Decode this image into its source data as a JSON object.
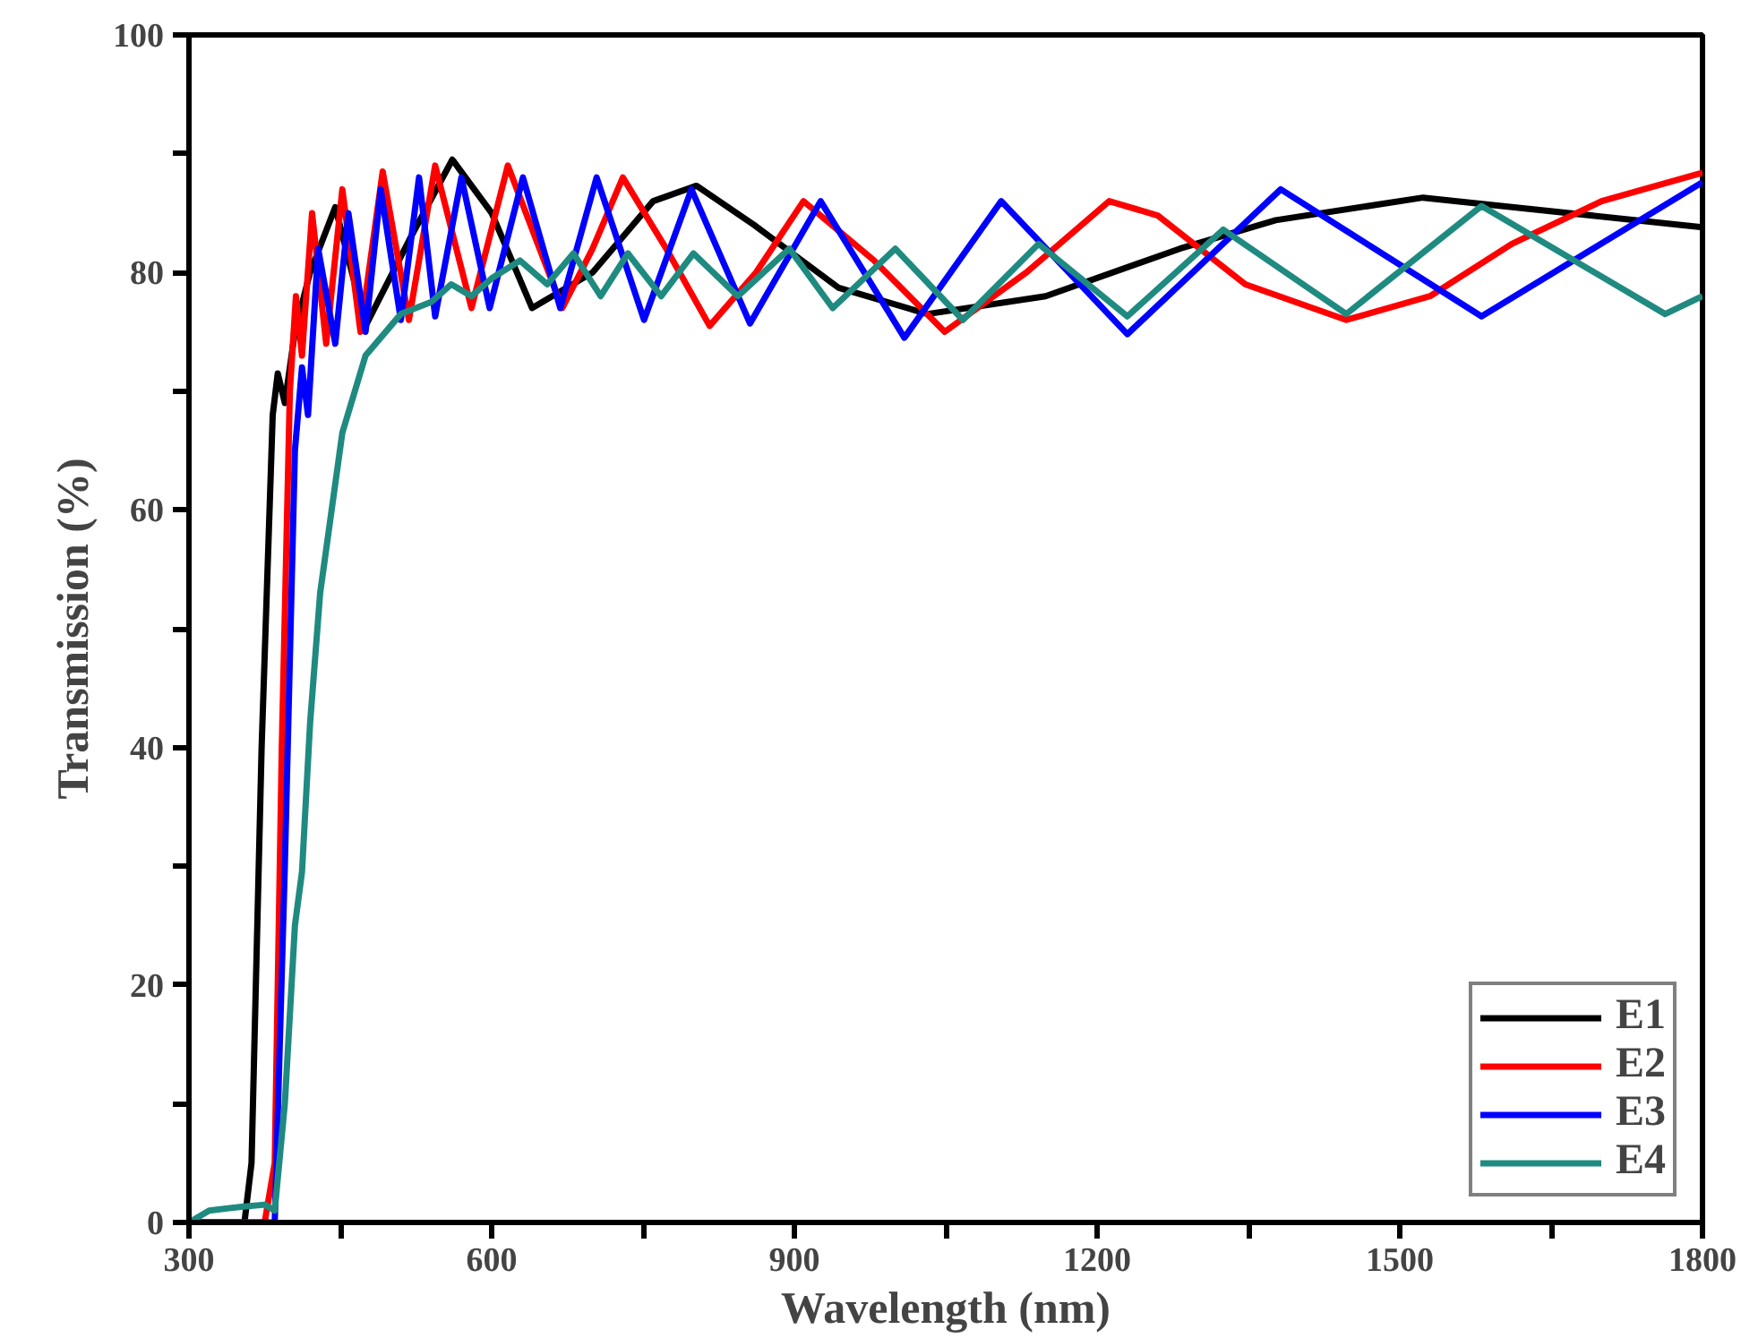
{
  "chart_data": {
    "type": "line",
    "xlabel": "Wavelength (nm)",
    "ylabel": "Transmission (%)",
    "xlim": [
      300,
      1800
    ],
    "ylim": [
      0,
      100
    ],
    "xticks": [
      300,
      {
        "value": 450,
        "label": null
      },
      600,
      {
        "value": 750,
        "label": null
      },
      900,
      {
        "value": 1050,
        "label": null
      },
      1200,
      {
        "value": 1350,
        "label": null
      },
      1500,
      {
        "value": 1650,
        "label": null
      },
      1800
    ],
    "yticks": [
      0,
      {
        "value": 10,
        "label": null
      },
      20,
      {
        "value": 30,
        "label": null
      },
      40,
      {
        "value": 50,
        "label": null
      },
      60,
      {
        "value": 70,
        "label": null
      },
      80,
      {
        "value": 90,
        "label": null
      },
      100
    ],
    "grid": false,
    "legend": "bottom right",
    "marker": "none",
    "line_style": "solid",
    "series": [
      {
        "name": "E1",
        "color": "#000000",
        "x": [
          300,
          355,
          362,
          372,
          383,
          388,
          395,
          405,
          420,
          445,
          475,
          520,
          561,
          600,
          640,
          700,
          760,
          803,
          860,
          944,
          1032,
          1149,
          1282,
          1377,
          1523,
          1668,
          1800
        ],
        "values": [
          0,
          0,
          5,
          40,
          68,
          71.5,
          69,
          75,
          80,
          85.5,
          75.5,
          83,
          89.5,
          85,
          77,
          80,
          86,
          87.3,
          84,
          78.7,
          76.5,
          78,
          82,
          84.4,
          86.3,
          85,
          83.8
        ]
      },
      {
        "name": "E2",
        "color": "#ff0000",
        "x": [
          300,
          375,
          385,
          392,
          400,
          406,
          412,
          422,
          436,
          452,
          470,
          492,
          518,
          544,
          562,
          580,
          598,
          616,
          643,
          670,
          700,
          730,
          773,
          816,
          862,
          909,
          979,
          1049,
          1130,
          1212,
          1260,
          1347,
          1447,
          1530,
          1611,
          1700,
          1800
        ],
        "values": [
          0,
          0,
          5,
          40,
          70,
          78,
          73,
          85,
          74,
          87,
          75,
          88.5,
          76,
          89,
          83,
          77,
          83,
          89,
          83,
          77,
          82,
          88,
          82,
          75.5,
          80,
          86,
          81,
          75,
          80,
          86,
          84.8,
          79,
          76,
          78,
          82.4,
          86,
          88.4
        ]
      },
      {
        "name": "E3",
        "color": "#0000ff",
        "x": [
          300,
          385,
          395,
          405,
          412,
          418,
          428,
          445,
          458,
          475,
          490,
          510,
          528,
          544,
          570,
          598,
          631,
          668,
          704,
          751,
          798,
          856,
          926,
          1009,
          1105,
          1230,
          1382,
          1581,
          1800
        ],
        "values": [
          0,
          0,
          30,
          65,
          72,
          68,
          82,
          74,
          85,
          75,
          87,
          76,
          88,
          76.3,
          88,
          77,
          88,
          77,
          88,
          76,
          87,
          75.7,
          86,
          74.5,
          86,
          74.8,
          87,
          76.3,
          87.6
        ]
      },
      {
        "name": "E4",
        "color": "#1f8a80",
        "x": [
          300,
          320,
          350,
          375,
          385,
          395,
          405,
          412,
          420,
          430,
          452,
          475,
          510,
          540,
          560,
          580,
          600,
          628,
          655,
          681,
          708,
          735,
          768,
          800,
          844,
          895,
          938,
          1000,
          1067,
          1142,
          1230,
          1325,
          1447,
          1581,
          1763,
          1800
        ],
        "values": [
          0,
          1,
          1.3,
          1.5,
          1,
          10,
          25,
          29.5,
          42,
          53,
          66.5,
          73,
          76.5,
          77.5,
          79,
          78,
          79.5,
          81,
          79,
          81.6,
          78,
          81.6,
          78,
          81.6,
          78,
          82,
          77,
          82,
          76,
          82.4,
          76.3,
          83.6,
          76.5,
          85.6,
          76.5,
          78
        ]
      }
    ]
  }
}
